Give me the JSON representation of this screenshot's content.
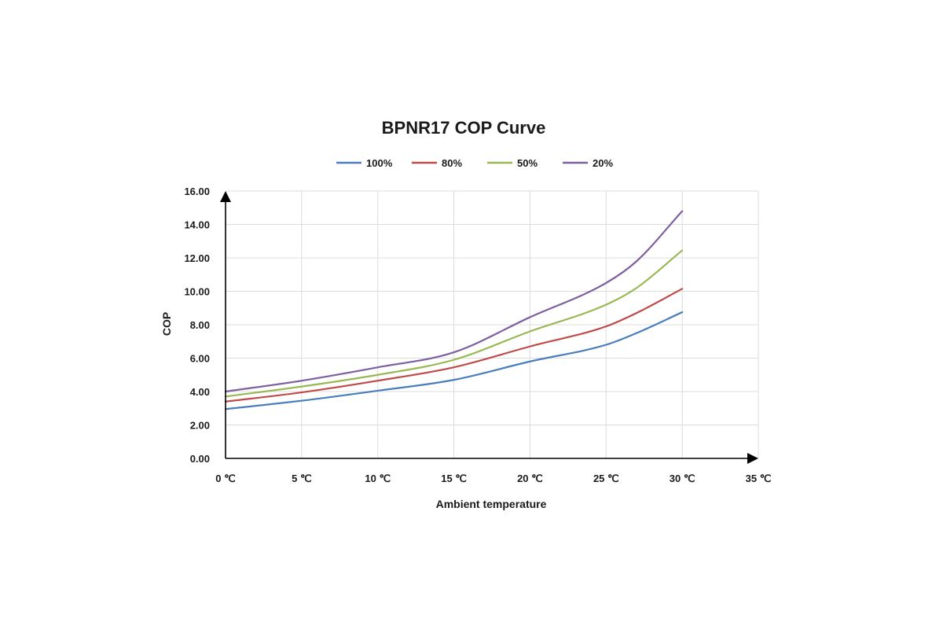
{
  "chart_data": {
    "type": "line",
    "title": "BPNR17 COP Curve",
    "xlabel": "Ambient temperature",
    "ylabel": "COP",
    "xlim": [
      0,
      35
    ],
    "ylim": [
      0,
      16
    ],
    "grid": true,
    "legend_position": "top",
    "x_ticks": [
      0,
      5,
      10,
      15,
      20,
      25,
      30,
      35
    ],
    "x_tick_labels": [
      "0 ℃",
      "5 ℃",
      "10 ℃",
      "15 ℃",
      "20 ℃",
      "25 ℃",
      "30 ℃",
      "35 ℃"
    ],
    "y_ticks": [
      0,
      2,
      4,
      6,
      8,
      10,
      12,
      14,
      16
    ],
    "y_tick_labels": [
      "0.00",
      "2.00",
      "4.00",
      "6.00",
      "8.00",
      "10.00",
      "12.00",
      "14.00",
      "16.00"
    ],
    "x": [
      0,
      5,
      10,
      15,
      20,
      25,
      27,
      30
    ],
    "series": [
      {
        "name": "100%",
        "color": "#4a7ebb",
        "values": [
          2.95,
          3.45,
          4.05,
          4.7,
          5.8,
          6.8,
          7.5,
          8.75
        ]
      },
      {
        "name": "80%",
        "color": "#be4b48",
        "values": [
          3.4,
          3.95,
          4.65,
          5.45,
          6.7,
          7.9,
          8.7,
          10.15
        ]
      },
      {
        "name": "50%",
        "color": "#98b954",
        "values": [
          3.7,
          4.3,
          5.0,
          5.9,
          7.6,
          9.2,
          10.2,
          12.45
        ]
      },
      {
        "name": "20%",
        "color": "#7d60a0",
        "values": [
          4.0,
          4.65,
          5.45,
          6.35,
          8.45,
          10.5,
          11.8,
          14.8
        ]
      }
    ]
  }
}
